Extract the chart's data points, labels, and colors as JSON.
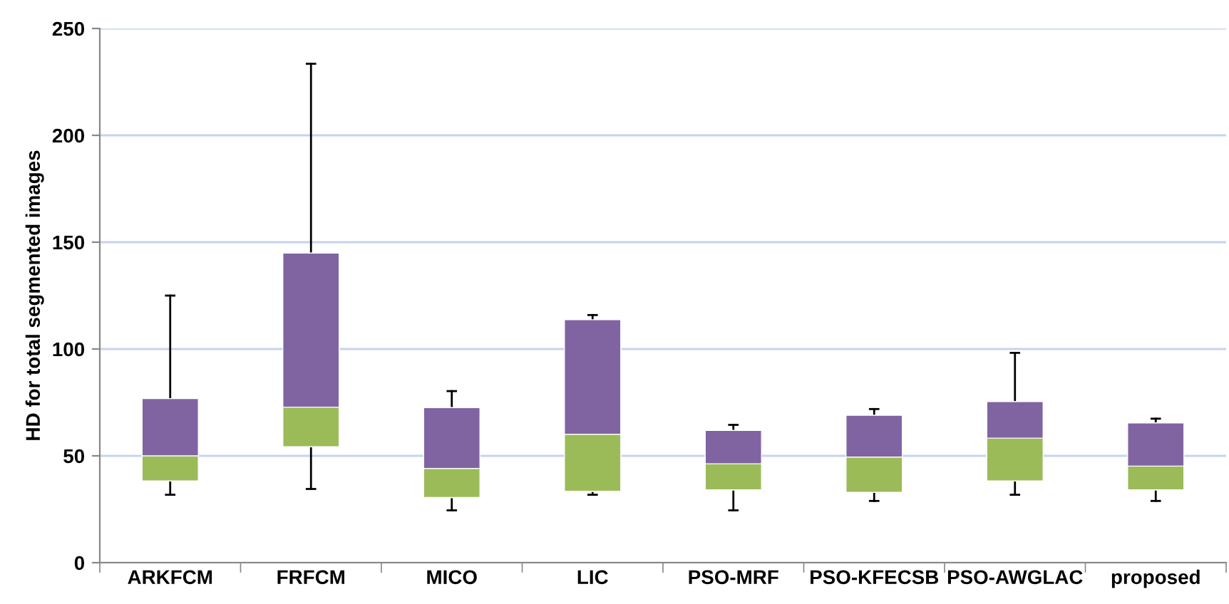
{
  "chart_data": {
    "type": "box",
    "ylabel": "HD for total segmented images",
    "categories": [
      "ARKFCM",
      "FRFCM",
      "MICO",
      "LIC",
      "PSO-MRF",
      "PSO-KFECSB",
      "PSO-AWGLAC",
      "proposed"
    ],
    "series": [
      {
        "color": "#8064a2",
        "boxes": [
          {
            "low": 31.8,
            "q1": 38.3,
            "median": 50,
            "q3": 76.8,
            "high": 125
          },
          {
            "low": 34.5,
            "q1": 54.3,
            "median": 72.8,
            "q3": 144.9,
            "high": 233.5
          },
          {
            "low": 24.5,
            "q1": 30.5,
            "median": 44.1,
            "q3": 72.6,
            "high": 80.3
          },
          {
            "low": 31.8,
            "q1": 33.4,
            "median": 60.1,
            "q3": 113.7,
            "high": 115.9
          },
          {
            "low": 24.5,
            "q1": 34.1,
            "median": 46.3,
            "q3": 61.9,
            "high": 64.5
          },
          {
            "low": 28.9,
            "q1": 32.9,
            "median": 49.4,
            "q3": 69,
            "high": 71.9
          },
          {
            "low": 31.8,
            "q1": 38.3,
            "median": 58.3,
            "q3": 75.4,
            "high": 98.2
          },
          {
            "low": 28.9,
            "q1": 34.1,
            "median": 45.2,
            "q3": 65.4,
            "high": 67.4
          }
        ]
      }
    ],
    "colors": [
      "#9bbb59",
      "#9bbb59",
      "#9bbb59",
      "#9bbb59",
      "#9bbb59",
      "#9bbb59",
      "#9bbb59",
      "#9bbb59"
    ],
    "ylim": [
      0,
      250
    ],
    "yticks": [
      0,
      50,
      100,
      150,
      200,
      250
    ],
    "grid": "y"
  }
}
